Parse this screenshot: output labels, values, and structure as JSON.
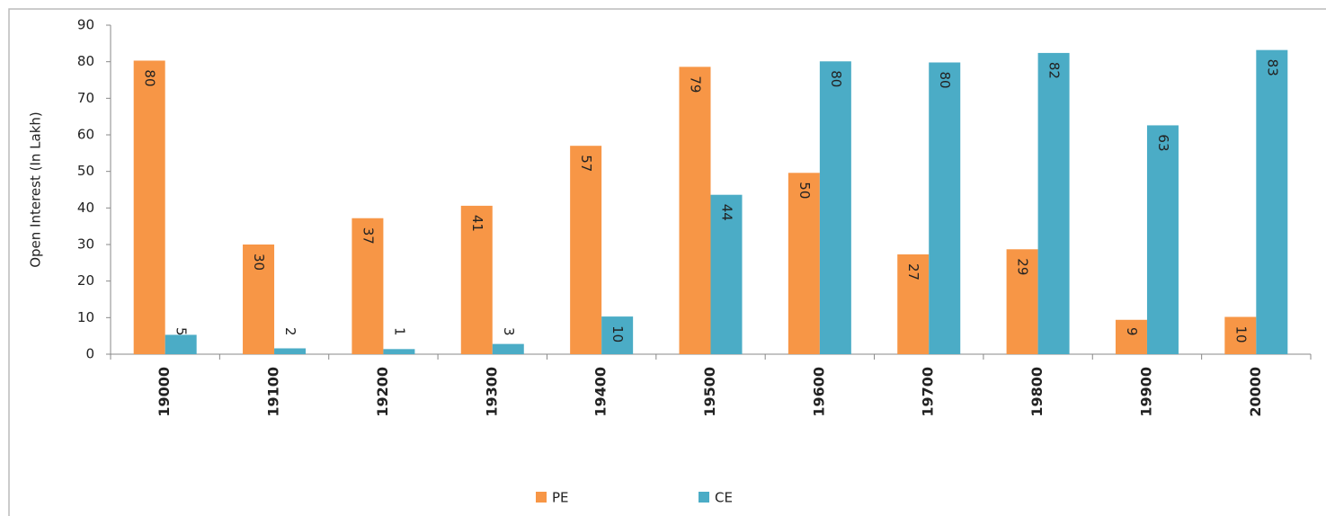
{
  "chart_data": {
    "type": "bar",
    "y_label": "Open Interest  (In Lakh)",
    "categories": [
      "19000",
      "19100",
      "19200",
      "19300",
      "19400",
      "19500",
      "19600",
      "19700",
      "19800",
      "19900",
      "20000"
    ],
    "series": [
      {
        "name": "PE",
        "color": "#f79646",
        "values": [
          80.3,
          30,
          37.2,
          40.6,
          57,
          78.6,
          49.6,
          27.3,
          28.7,
          9.4,
          10.2
        ],
        "value_labels": [
          "80",
          "30",
          "37",
          "41",
          "57",
          "79",
          "50",
          "27",
          "29",
          "9",
          "10"
        ]
      },
      {
        "name": "CE",
        "color": "#4bacc6",
        "values": [
          5.3,
          1.6,
          1.4,
          2.8,
          10.3,
          43.6,
          80.1,
          79.8,
          82.4,
          62.6,
          83.2
        ],
        "value_labels": [
          "5",
          "2",
          "1",
          "3",
          "10",
          "44",
          "80",
          "80",
          "82",
          "63",
          "83"
        ]
      }
    ],
    "ylim": [
      0,
      90
    ],
    "yticks": [
      0,
      10,
      20,
      30,
      40,
      50,
      60,
      70,
      80,
      90
    ],
    "grid": false,
    "legend": "bottom"
  }
}
